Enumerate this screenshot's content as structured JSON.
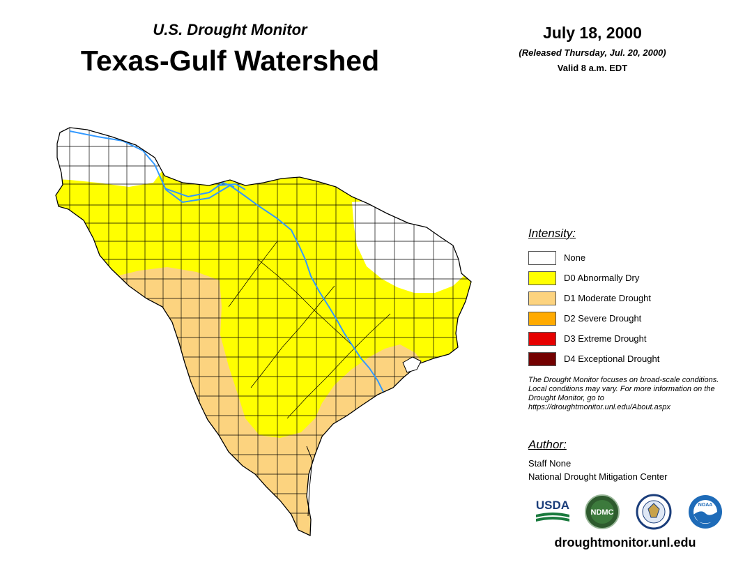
{
  "header": {
    "subtitle": "U.S. Drought Monitor",
    "title": "Texas-Gulf Watershed",
    "date": "July 18, 2000",
    "released": "(Released Thursday, Jul. 20, 2000)",
    "valid": "Valid 8 a.m. EDT"
  },
  "legend": {
    "title": "Intensity:",
    "items": [
      {
        "label": "None",
        "color": "#ffffff"
      },
      {
        "label": "D0 Abnormally Dry",
        "color": "#ffff00"
      },
      {
        "label": "D1 Moderate Drought",
        "color": "#fcd37f"
      },
      {
        "label": "D2 Severe Drought",
        "color": "#ffaa00"
      },
      {
        "label": "D3 Extreme Drought",
        "color": "#e60000"
      },
      {
        "label": "D4 Exceptional Drought",
        "color": "#730000"
      }
    ]
  },
  "note": "The Drought Monitor focuses on broad-scale conditions. Local conditions may vary. For more information on the Drought Monitor, go to https://droughtmonitor.unl.edu/About.aspx",
  "author": {
    "title": "Author:",
    "name": "Staff None",
    "org": "National Drought Mitigation Center"
  },
  "logos": {
    "usda": "USDA",
    "ndmc": "NDMC",
    "noaa": "NOAA"
  },
  "site": "droughtmonitor.unl.edu",
  "map": {
    "river_color": "#3399ff",
    "boundary_color": "#000000"
  }
}
